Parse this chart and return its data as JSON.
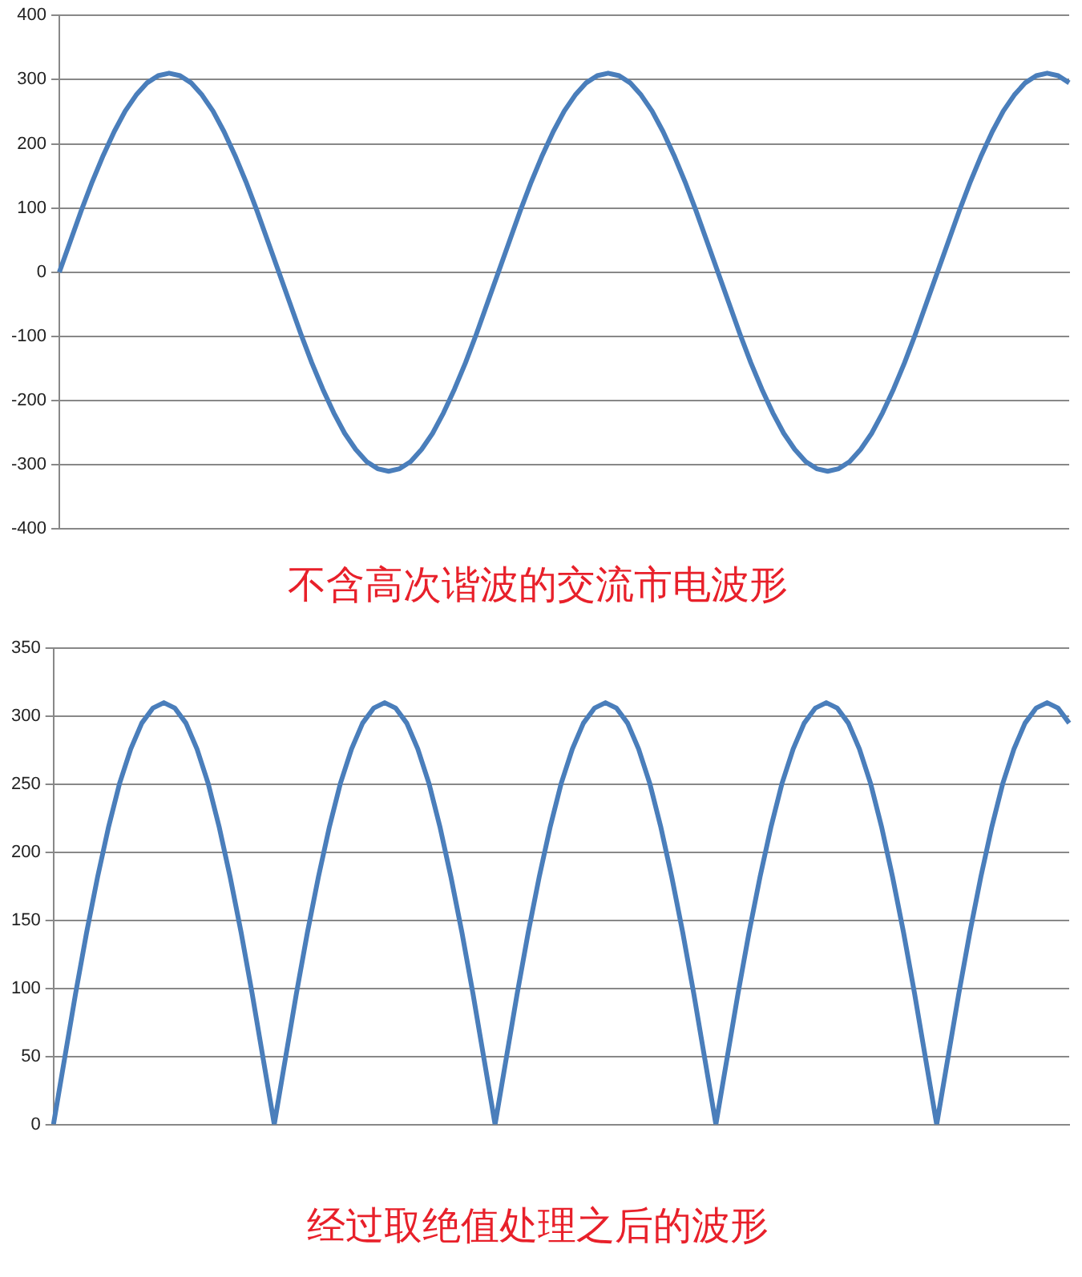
{
  "chart_data": [
    {
      "type": "line",
      "title": "不含高次谐波的交流市电波形",
      "categories": [
        null,
        null,
        null,
        null,
        null,
        null,
        null,
        null,
        null,
        null,
        null,
        null,
        null,
        null,
        null,
        null,
        null,
        null,
        null,
        null,
        null,
        null,
        null,
        null,
        null,
        null,
        null,
        null,
        null,
        null,
        null,
        null,
        null,
        null,
        null,
        null,
        null,
        null,
        null,
        null,
        null,
        null,
        null,
        null,
        null,
        null,
        null,
        null,
        null,
        null,
        null,
        null,
        null,
        null,
        null,
        null,
        null,
        null,
        null,
        null,
        null,
        null,
        null,
        null,
        null,
        null,
        null,
        null,
        null,
        null,
        null,
        null,
        null,
        null,
        null,
        null,
        null,
        null,
        null,
        null,
        null,
        null,
        null,
        null,
        null,
        null,
        null,
        null,
        null,
        null,
        null,
        null,
        null
      ],
      "series": [
        {
          "color": "#4a7ebb",
          "values": [
            0,
            48,
            96,
            141,
            182,
            219,
            251,
            276,
            295,
            306,
            310,
            306,
            295,
            276,
            251,
            219,
            182,
            141,
            96,
            48,
            0,
            -48,
            -96,
            -141,
            -182,
            -219,
            -251,
            -276,
            -295,
            -306,
            -310,
            -306,
            -295,
            -276,
            -251,
            -219,
            -182,
            -141,
            -96,
            -48,
            0,
            48,
            96,
            141,
            182,
            219,
            251,
            276,
            295,
            306,
            310,
            306,
            295,
            276,
            251,
            219,
            182,
            141,
            96,
            48,
            0,
            -48,
            -96,
            -141,
            -182,
            -219,
            -251,
            -276,
            -295,
            -306,
            -310,
            -306,
            -295,
            -276,
            -251,
            -219,
            -182,
            -141,
            -96,
            -48,
            0,
            48,
            96,
            141,
            182,
            219,
            251,
            276,
            295,
            306,
            310,
            306,
            295
          ]
        }
      ],
      "ylim": [
        -400,
        400
      ],
      "yticks": [
        -400,
        -300,
        -200,
        -100,
        0,
        100,
        200,
        300,
        400
      ],
      "grid": "y",
      "legend": false,
      "marker": "none",
      "line_style": "solid"
    },
    {
      "type": "line",
      "title": "经过取绝值处理之后的波形",
      "categories": [
        null,
        null,
        null,
        null,
        null,
        null,
        null,
        null,
        null,
        null,
        null,
        null,
        null,
        null,
        null,
        null,
        null,
        null,
        null,
        null,
        null,
        null,
        null,
        null,
        null,
        null,
        null,
        null,
        null,
        null,
        null,
        null,
        null,
        null,
        null,
        null,
        null,
        null,
        null,
        null,
        null,
        null,
        null,
        null,
        null,
        null,
        null,
        null,
        null,
        null,
        null,
        null,
        null,
        null,
        null,
        null,
        null,
        null,
        null,
        null,
        null,
        null,
        null,
        null,
        null,
        null,
        null,
        null,
        null,
        null,
        null,
        null,
        null,
        null,
        null,
        null,
        null,
        null,
        null,
        null,
        null,
        null,
        null,
        null,
        null,
        null,
        null,
        null,
        null,
        null,
        null,
        null,
        null
      ],
      "series": [
        {
          "color": "#4a7ebb",
          "values": [
            0,
            48,
            96,
            141,
            182,
            219,
            251,
            276,
            295,
            306,
            310,
            306,
            295,
            276,
            251,
            219,
            182,
            141,
            96,
            48,
            0,
            48,
            96,
            141,
            182,
            219,
            251,
            276,
            295,
            306,
            310,
            306,
            295,
            276,
            251,
            219,
            182,
            141,
            96,
            48,
            0,
            48,
            96,
            141,
            182,
            219,
            251,
            276,
            295,
            306,
            310,
            306,
            295,
            276,
            251,
            219,
            182,
            141,
            96,
            48,
            0,
            48,
            96,
            141,
            182,
            219,
            251,
            276,
            295,
            306,
            310,
            306,
            295,
            276,
            251,
            219,
            182,
            141,
            96,
            48,
            0,
            48,
            96,
            141,
            182,
            219,
            251,
            276,
            295,
            306,
            310,
            306,
            295
          ]
        }
      ],
      "ylim": [
        0,
        350
      ],
      "yticks": [
        0,
        50,
        100,
        150,
        200,
        250,
        300,
        350
      ],
      "grid": "y",
      "legend": false,
      "marker": "none",
      "line_style": "solid"
    }
  ]
}
